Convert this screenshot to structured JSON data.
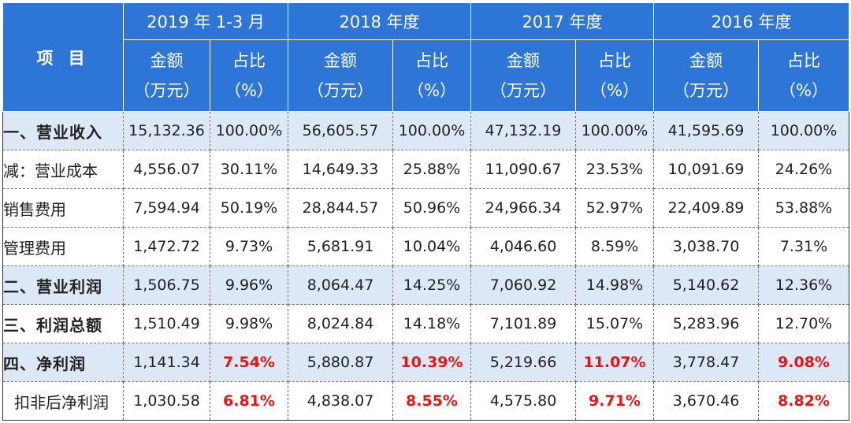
{
  "header": {
    "item": "项 目",
    "periods": [
      "2019 年 1-3 月",
      "2018 年度",
      "2017 年度",
      "2016  年度"
    ],
    "amount_label": "金额",
    "amount_unit": "（万元）",
    "ratio_label": "占比",
    "ratio_unit": "（%）"
  },
  "rows": [
    {
      "label": "一、营业收入",
      "cells": [
        "15,132.36",
        "100.00%",
        "56,605.57",
        "100.00%",
        "47,132.19",
        "100.00%",
        "41,595.69",
        "100.00%"
      ]
    },
    {
      "label": "减：营业成本",
      "cells": [
        "4,556.07",
        "30.11%",
        "14,649.33",
        "25.88%",
        "11,090.67",
        "23.53%",
        "10,091.69",
        "24.26%"
      ]
    },
    {
      "label": "销售费用",
      "cells": [
        "7,594.94",
        "50.19%",
        "28,844.57",
        "50.96%",
        "24,966.34",
        "52.97%",
        "22,409.89",
        "53.88%"
      ]
    },
    {
      "label": "管理费用",
      "cells": [
        "1,472.72",
        "9.73%",
        "5,681.91",
        "10.04%",
        "4,046.60",
        "8.59%",
        "3,038.70",
        "7.31%"
      ]
    },
    {
      "label": "二、营业利润",
      "cells": [
        "1,506.75",
        "9.96%",
        "8,064.47",
        "14.25%",
        "7,060.92",
        "14.98%",
        "5,140.62",
        "12.36%"
      ]
    },
    {
      "label": "三、利润总额",
      "cells": [
        "1,510.49",
        "9.98%",
        "8,024.84",
        "14.18%",
        "7,101.89",
        "15.07%",
        "5,283.96",
        "12.70%"
      ]
    },
    {
      "label": "四、净利润",
      "cells": [
        "1,141.34",
        "7.54%",
        "5,880.87",
        "10.39%",
        "5,219.66",
        "11.07%",
        "3,778.47",
        "9.08%"
      ]
    },
    {
      "label": "扣非后净利润",
      "cells": [
        "1,030.58",
        "6.81%",
        "4,838.07",
        "8.55%",
        "4,575.80",
        "9.71%",
        "3,670.46",
        "8.82%"
      ]
    }
  ],
  "colors": {
    "header_bg": "#2E75D8",
    "highlight_bg": "#DDE8F6",
    "emphasis_red": "#E81515"
  }
}
